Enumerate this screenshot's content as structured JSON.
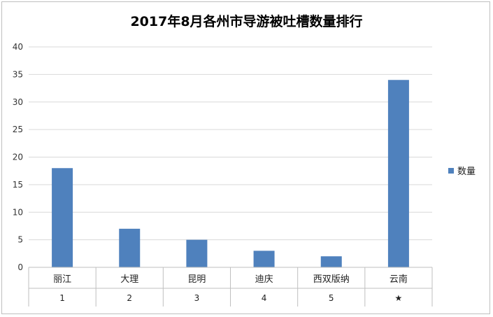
{
  "chart_data": {
    "type": "bar",
    "title": "2017年8月各州市导游被吐槽数量排行",
    "categories": [
      "丽江",
      "大理",
      "昆明",
      "迪庆",
      "西双版纳",
      "云南"
    ],
    "category_index": [
      "1",
      "2",
      "3",
      "4",
      "5",
      "★"
    ],
    "series": [
      {
        "name": "数量",
        "values": [
          18,
          7,
          5,
          3,
          2,
          34
        ],
        "color": "#4f81bd"
      }
    ],
    "ylim": [
      0,
      40
    ],
    "yticks": [
      0,
      5,
      10,
      15,
      20,
      25,
      30,
      35,
      40
    ],
    "grid": true,
    "legend_position": "right"
  }
}
